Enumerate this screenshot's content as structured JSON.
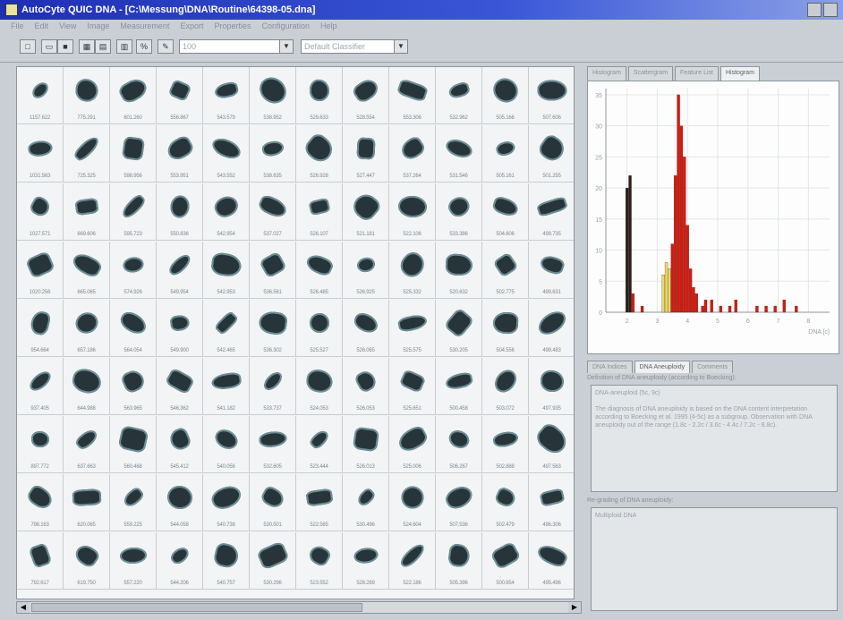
{
  "window": {
    "title": "AutoCyte QUIC DNA - [C:\\Messung\\DNA\\Routine\\64398-05.dna]"
  },
  "menu": [
    "File",
    "Edit",
    "View",
    "Image",
    "Measurement",
    "Export",
    "Properties",
    "Configuration",
    "Help"
  ],
  "toolbar": {
    "combo1_value": "100",
    "combo2_value": "Default Classifier"
  },
  "gallery": {
    "rows": [
      [
        "1157.622",
        "775.291",
        "601.260",
        "556.867",
        "543.579",
        "538.952",
        "529.633",
        "528.554",
        "553.306",
        "532.962",
        "505.166",
        "507.606"
      ],
      [
        "1031.563",
        "725.325",
        "598.956",
        "553.951",
        "543.552",
        "538.635",
        "526.928",
        "527.447",
        "537.264",
        "531.546",
        "505.161",
        "501.255"
      ],
      [
        "1027.571",
        "669.606",
        "595.723",
        "550.836",
        "542.954",
        "537.027",
        "526.107",
        "521.181",
        "522.106",
        "533.386",
        "504.606",
        "499.735"
      ],
      [
        "1020.256",
        "665.065",
        "574.926",
        "549.954",
        "542.953",
        "536.561",
        "526.485",
        "526.925",
        "525.332",
        "520.632",
        "502.775",
        "499.631"
      ],
      [
        "954.664",
        "657.186",
        "564.054",
        "549.900",
        "542.465",
        "536.302",
        "525.527",
        "526.065",
        "525.575",
        "530.205",
        "504.556",
        "499.483"
      ],
      [
        "937.405",
        "644.988",
        "563.965",
        "546.362",
        "541.182",
        "533.737",
        "524.053",
        "526.053",
        "525.651",
        "500.458",
        "503.072",
        "497.935"
      ],
      [
        "897.772",
        "637.663",
        "560.468",
        "545.412",
        "540.056",
        "532.605",
        "523.444",
        "526.013",
        "525.006",
        "506.267",
        "502.888",
        "497.563"
      ],
      [
        "798.163",
        "620.065",
        "559.225",
        "544.058",
        "540.738",
        "530.501",
        "522.565",
        "530.496",
        "524.604",
        "507.536",
        "502.479",
        "496.306"
      ],
      [
        "792.617",
        "619.750",
        "557.220",
        "544.206",
        "540.757",
        "530.296",
        "523.552",
        "528.289",
        "522.186",
        "505.396",
        "500.654",
        "495.496"
      ]
    ]
  },
  "right_panel": {
    "histogram_tabs": [
      "Histogram",
      "Scattergram",
      "Feature List",
      "Histogram"
    ],
    "active_histogram_tab": 3,
    "info_tabs": [
      "DNA Indices",
      "DNA Aneuploidy",
      "Comments"
    ],
    "active_info_tab": 1,
    "definition_label": "Definition of DNA aneuploidy (according to Boecking):",
    "definition_text": "DNA-aneuploid (5c, 9c)\n\nThe diagnosis of DNA aneuploidy is based on the DNA content interpretation according to Boecking et al. 1995 (4-5c) as a subgroup. Observation with DNA aneuploidy out of the range (1.8c - 2.2c / 3.6c - 4.4c / 7.2c - 8.8c).",
    "grading_label": "Re-grading of DNA aneuploidy:",
    "grading_text": "Multiploid DNA"
  },
  "chart_data": {
    "type": "bar",
    "xlabel": "DNA [c]",
    "x_ticks": [
      2,
      3,
      4,
      5,
      6,
      7,
      8
    ],
    "y_ticks": [
      0,
      5,
      10,
      15,
      20,
      25,
      30,
      35
    ],
    "xlim": [
      1.3,
      8.7
    ],
    "ylim": [
      0,
      36
    ],
    "grid": true,
    "series": [
      {
        "color": "#222222",
        "x": [
          2.0,
          2.1
        ],
        "values": [
          20,
          22
        ]
      },
      {
        "color": "#d21a12",
        "x": [
          2.2,
          2.5,
          3.5,
          3.6,
          3.7,
          3.8,
          3.9,
          4.0,
          4.1,
          4.2,
          4.3,
          4.5,
          4.6,
          4.8,
          5.1,
          5.4,
          5.6,
          6.3,
          6.6,
          6.9,
          7.2,
          7.6
        ],
        "values": [
          3,
          1,
          11,
          22,
          35,
          30,
          25,
          14,
          7,
          4,
          3,
          1,
          2,
          2,
          1,
          1,
          2,
          1,
          1,
          1,
          2,
          1
        ]
      },
      {
        "color": "#e6dc6a",
        "x": [
          3.2,
          3.3,
          3.4
        ],
        "values": [
          6,
          8,
          7
        ]
      }
    ]
  }
}
